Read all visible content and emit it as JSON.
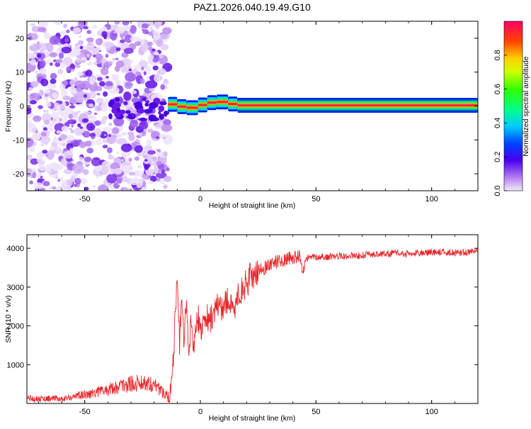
{
  "title": "PAZ1.2026.040.19.49.G10",
  "chart_data": [
    {
      "type": "heatmap",
      "name": "spectrogram",
      "xlabel": "Height of straight line (km)",
      "ylabel": "Frequency (Hz)",
      "xlim": [
        -75,
        120
      ],
      "ylim": [
        -25,
        25
      ],
      "xticks": [
        -50,
        0,
        50,
        100
      ],
      "yticks": [
        -20,
        -10,
        0,
        10,
        20
      ],
      "colorbar": {
        "label": "Normalized spectral amplitude",
        "range": [
          0,
          1
        ],
        "ticks": [
          0.0,
          0.2,
          0.4,
          0.6,
          0.8
        ],
        "tick_labels": [
          "0.0",
          "0.2",
          "0.4",
          "0.6",
          "0.8"
        ]
      },
      "noise_region_x": [
        -75,
        -14
      ],
      "carrier_segments": [
        {
          "x": [
            -14,
            -10
          ],
          "freq": 0.5
        },
        {
          "x": [
            -10,
            -6
          ],
          "freq": -0.2
        },
        {
          "x": [
            -6,
            -1
          ],
          "freq": -0.5
        },
        {
          "x": [
            -1,
            3
          ],
          "freq": 0.3
        },
        {
          "x": [
            3,
            7
          ],
          "freq": 1.0
        },
        {
          "x": [
            7,
            12
          ],
          "freq": 1.2
        },
        {
          "x": [
            12,
            16
          ],
          "freq": 0.6
        },
        {
          "x": [
            16,
            120
          ],
          "freq": 0.2
        }
      ]
    },
    {
      "type": "line",
      "name": "snr",
      "xlabel": "Height of straight line (km)",
      "ylabel": "SNR (10 * v/v)",
      "xlim": [
        -75,
        120
      ],
      "ylim": [
        0,
        4350
      ],
      "xticks": [
        -50,
        0,
        50,
        100
      ],
      "yticks": [
        1000,
        2000,
        3000,
        4000
      ],
      "color": "#e8262a",
      "series": [
        {
          "name": "SNR",
          "x": [
            -75,
            -70,
            -65,
            -60,
            -55,
            -50,
            -45,
            -40,
            -35,
            -30,
            -25,
            -20,
            -16,
            -13,
            -12,
            -11,
            -10,
            -9,
            -8,
            -7,
            -6,
            -5,
            -4,
            -3,
            -2,
            -1,
            0,
            2,
            4,
            6,
            8,
            10,
            12,
            14,
            16,
            18,
            20,
            22,
            25,
            28,
            30,
            33,
            36,
            40,
            43,
            44,
            46,
            50,
            55,
            60,
            65,
            70,
            75,
            80,
            85,
            90,
            95,
            100,
            105,
            110,
            115,
            120
          ],
          "values": [
            150,
            120,
            130,
            110,
            180,
            230,
            300,
            350,
            450,
            500,
            550,
            500,
            280,
            200,
            700,
            2000,
            3300,
            1600,
            2500,
            1500,
            2700,
            1100,
            2400,
            1200,
            2000,
            2200,
            1900,
            2300,
            2100,
            2400,
            2500,
            2500,
            2700,
            2300,
            2800,
            2900,
            3100,
            3300,
            3400,
            3500,
            3600,
            3650,
            3700,
            3750,
            3800,
            3400,
            3750,
            3780,
            3780,
            3800,
            3800,
            3820,
            3850,
            3850,
            3880,
            3850,
            3880,
            3900,
            3900,
            3880,
            3900,
            3920
          ]
        }
      ]
    }
  ]
}
